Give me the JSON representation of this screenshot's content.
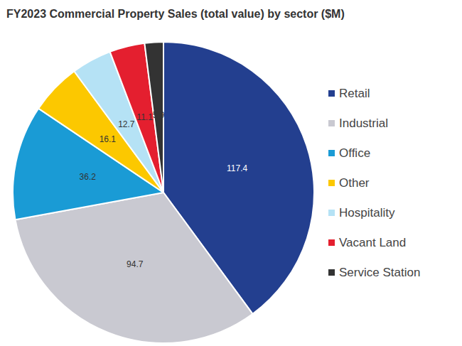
{
  "chart_data": {
    "type": "pie",
    "title": "FY2023 Commercial Property Sales (total value) by sector ($M)",
    "categories": [
      "Retail",
      "Industrial",
      "Office",
      "Other",
      "Hospitality",
      "Vacant Land",
      "Service Station"
    ],
    "values": [
      117.4,
      94.7,
      36.2,
      16.1,
      12.7,
      11.1,
      5.9
    ],
    "colors": [
      "#233f8f",
      "#c9c9d1",
      "#1a9bd5",
      "#fcc800",
      "#b5e2f5",
      "#e41f2f",
      "#333333"
    ],
    "data_labels": true,
    "legend": "right"
  }
}
